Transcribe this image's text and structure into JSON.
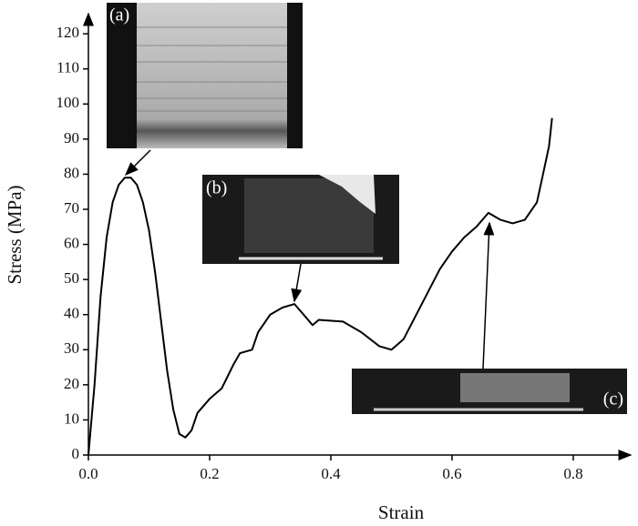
{
  "chart_data": {
    "type": "line",
    "xlabel": "Strain",
    "ylabel": "Stress (MPa)",
    "x": [
      0,
      0.01,
      0.02,
      0.03,
      0.04,
      0.05,
      0.06,
      0.07,
      0.08,
      0.09,
      0.1,
      0.11,
      0.12,
      0.13,
      0.14,
      0.15,
      0.16,
      0.17,
      0.18,
      0.2,
      0.22,
      0.24,
      0.25,
      0.27,
      0.28,
      0.3,
      0.32,
      0.34,
      0.35,
      0.37,
      0.38,
      0.42,
      0.45,
      0.48,
      0.5,
      0.52,
      0.55,
      0.58,
      0.6,
      0.62,
      0.64,
      0.66,
      0.68,
      0.7,
      0.72,
      0.74,
      0.75,
      0.76,
      0.765
    ],
    "values": [
      0,
      20,
      45,
      62,
      72,
      77,
      79,
      79,
      77,
      72,
      64,
      52,
      38,
      24,
      13,
      6,
      5,
      7,
      12,
      16,
      19,
      26,
      29,
      30,
      35,
      40,
      42,
      43,
      41,
      37,
      38.5,
      38,
      35,
      31,
      30,
      33,
      43,
      53,
      58,
      62,
      65,
      69,
      67,
      66,
      67,
      72,
      80,
      88,
      96
    ],
    "color": "#000000",
    "xlim": [
      0,
      0.89
    ],
    "ylim": [
      0,
      126
    ],
    "xticks": [
      {
        "value": 0,
        "label": "0.0"
      },
      0.2,
      0.4,
      0.6,
      0.8
    ],
    "yticks": [
      0,
      10,
      20,
      30,
      40,
      50,
      60,
      70,
      80,
      90,
      100,
      110,
      120
    ],
    "annotations": [
      "(a)",
      "(b)",
      "(c)"
    ]
  }
}
